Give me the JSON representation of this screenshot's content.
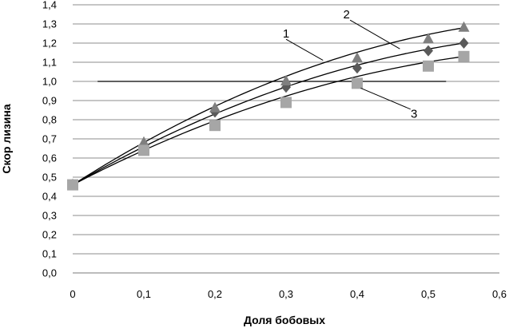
{
  "chart_data": {
    "type": "scatter",
    "xlabel": "Доля бобовых",
    "ylabel": "Скор лизина",
    "xlim": [
      0,
      0.6
    ],
    "ylim": [
      0,
      1.4
    ],
    "x_ticks": [
      "0",
      "0,1",
      "0,2",
      "0,3",
      "0,4",
      "0,5",
      "0,6"
    ],
    "y_ticks": [
      "0,0",
      "0,1",
      "0,2",
      "0,3",
      "0,4",
      "0,5",
      "0,6",
      "0,7",
      "0,8",
      "0,9",
      "1,0",
      "1,1",
      "1,2",
      "1,3",
      "1,4"
    ],
    "grid": "horizontal",
    "reference_line": {
      "y": 1.0,
      "x_from": 0.035,
      "x_to": 0.525
    },
    "series": [
      {
        "label": "1",
        "marker": "diamond",
        "color": "#5a5a5a",
        "x": [
          0,
          0.1,
          0.2,
          0.3,
          0.4,
          0.5,
          0.55
        ],
        "y": [
          0.46,
          0.66,
          0.84,
          0.97,
          1.07,
          1.16,
          1.2
        ],
        "fit_end": [
          0.55,
          1.2
        ],
        "label_pos": [
          0.3,
          1.23
        ]
      },
      {
        "label": "2",
        "marker": "triangle",
        "color": "#7f7f7f",
        "x": [
          0,
          0.1,
          0.2,
          0.3,
          0.4,
          0.5,
          0.55
        ],
        "y": [
          0.46,
          0.68,
          0.86,
          1.0,
          1.12,
          1.22,
          1.28
        ],
        "fit_end": [
          0.55,
          1.28
        ],
        "label_pos": [
          0.385,
          1.33
        ]
      },
      {
        "label": "3",
        "marker": "square",
        "color": "#a6a6a6",
        "x": [
          0,
          0.1,
          0.2,
          0.3,
          0.4,
          0.5,
          0.55
        ],
        "y": [
          0.46,
          0.64,
          0.77,
          0.89,
          0.99,
          1.08,
          1.13
        ],
        "fit_end": [
          0.55,
          1.13
        ],
        "label_pos": [
          0.48,
          0.81
        ]
      }
    ],
    "callouts": [
      {
        "series": "1",
        "from": [
          0.3,
          1.22
        ],
        "to": [
          0.352,
          1.11
        ]
      },
      {
        "series": "2",
        "from": [
          0.39,
          1.32
        ],
        "to": [
          0.46,
          1.17
        ]
      },
      {
        "series": "3",
        "from": [
          0.475,
          0.855
        ],
        "to": [
          0.405,
          0.965
        ]
      }
    ]
  }
}
